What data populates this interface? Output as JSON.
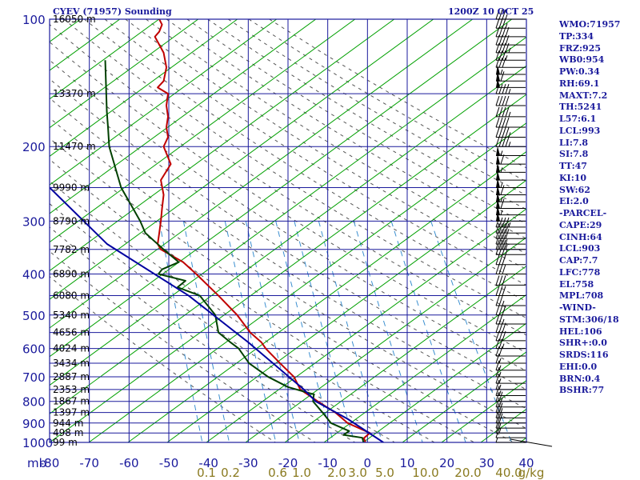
{
  "header": {
    "station": "CYEV (71957) Sounding",
    "datetime": "1200Z 10 OCT 25"
  },
  "colors": {
    "background": "#ffffff",
    "grid": "#1a1a9c",
    "isotherm_diagonal": "#00a000",
    "temperature": "#c00000",
    "dewpoint": "#004000",
    "parcel": "#0000a0",
    "dry_adiabat": "#555555",
    "mixing_ratio": "#3b8fd0",
    "text": "#1a1a9c",
    "mixing_ratio_labels": "#8a7a20"
  },
  "stats": [
    "WMO:71957",
    "TP:334",
    "FRZ:925",
    "WB0:954",
    "PW:0.34",
    "RH:69.1",
    "MAXT:7.2",
    "TH:5241",
    "L57:6.1",
    "LCL:993",
    "LI:7.8",
    "SI:7.8",
    "TT:47",
    "KI:10",
    "SW:62",
    "EI:2.0",
    "-PARCEL-",
    "CAPE:29",
    "CINH:64",
    "LCL:903",
    "CAP:7.7",
    "LFC:778",
    "EL:758",
    "MPL:708",
    "-WIND-",
    "STM:306/18",
    "HEL:106",
    "SHR+:0.0",
    "SRDS:116",
    "EHI:0.0",
    "BRN:0.4",
    "BSHR:77"
  ],
  "chart_data": {
    "type": "line",
    "title": "",
    "pressure_unit_label": "mb",
    "x_unit": "°C",
    "xlim": [
      -80,
      40
    ],
    "ylim": [
      1000,
      100
    ],
    "y_scale": "log",
    "grid": true,
    "x_ticks": [
      "-80",
      "-70",
      "-60",
      "-50",
      "-40",
      "-30",
      "-20",
      "-10",
      "0",
      "10",
      "20",
      "30",
      "40"
    ],
    "y_ticks": [
      "100",
      "200",
      "300",
      "400",
      "500",
      "600",
      "700",
      "800",
      "900",
      "1000"
    ],
    "height_labels": [
      {
        "p": 100,
        "label": "16050 m"
      },
      {
        "p": 150,
        "label": "13370 m"
      },
      {
        "p": 200,
        "label": "11470 m"
      },
      {
        "p": 250,
        "label": "9990 m"
      },
      {
        "p": 300,
        "label": "8790 m"
      },
      {
        "p": 350,
        "label": "7782 m"
      },
      {
        "p": 400,
        "label": "6890 m"
      },
      {
        "p": 450,
        "label": "6080 m"
      },
      {
        "p": 500,
        "label": "5340 m"
      },
      {
        "p": 550,
        "label": "4656 m"
      },
      {
        "p": 600,
        "label": "4024 m"
      },
      {
        "p": 650,
        "label": "3434 m"
      },
      {
        "p": 700,
        "label": "2887 m"
      },
      {
        "p": 750,
        "label": "2353 m"
      },
      {
        "p": 800,
        "label": "1867 m"
      },
      {
        "p": 850,
        "label": "1397 m"
      },
      {
        "p": 900,
        "label": "944 m"
      },
      {
        "p": 950,
        "label": "498 m"
      },
      {
        "p": 1000,
        "label": "99 m"
      }
    ],
    "mixing_ratio_labels": [
      "0.1",
      "0.2",
      "0.6",
      "1.0",
      "2.0",
      "3.0",
      "5.0",
      "10.0",
      "20.0",
      "40.0",
      "g/kg"
    ],
    "series": [
      {
        "key": "temperature",
        "points": [
          [
            -52.4,
            100
          ],
          [
            -51.7,
            103
          ],
          [
            -52.4,
            107
          ],
          [
            -53.5,
            110
          ],
          [
            -51.3,
            120
          ],
          [
            -50.6,
            130
          ],
          [
            -51.3,
            140
          ],
          [
            -52.8,
            145
          ],
          [
            -50.2,
            150
          ],
          [
            -50.6,
            160
          ],
          [
            -50.2,
            170
          ],
          [
            -50.6,
            180
          ],
          [
            -50.2,
            190
          ],
          [
            -51.3,
            200
          ],
          [
            -49.5,
            220
          ],
          [
            -52.0,
            240
          ],
          [
            -51.3,
            260
          ],
          [
            -51.7,
            280
          ],
          [
            -52.0,
            300
          ],
          [
            -52.4,
            320
          ],
          [
            -52.8,
            340
          ],
          [
            -52.0,
            350
          ],
          [
            -46.4,
            375
          ],
          [
            -43.1,
            400
          ],
          [
            -37.5,
            450
          ],
          [
            -32.8,
            500
          ],
          [
            -29.5,
            550
          ],
          [
            -26.7,
            580
          ],
          [
            -25.6,
            600
          ],
          [
            -22.0,
            650
          ],
          [
            -18.5,
            700
          ],
          [
            -16.9,
            750
          ],
          [
            -12.5,
            800
          ],
          [
            -8.1,
            850
          ],
          [
            -5.0,
            900
          ],
          [
            0.6,
            950
          ],
          [
            -0.9,
            977
          ],
          [
            -0.5,
            1000
          ]
        ]
      },
      {
        "key": "dewpoint",
        "points": [
          [
            -66,
            125
          ],
          [
            -65.6,
            165
          ],
          [
            -65.3,
            180
          ],
          [
            -65,
            200
          ],
          [
            -62,
            250
          ],
          [
            -59,
            280
          ],
          [
            -57.2,
            300
          ],
          [
            -55.9,
            320
          ],
          [
            -51.3,
            350
          ],
          [
            -47.5,
            375
          ],
          [
            -51.7,
            390
          ],
          [
            -52.6,
            400
          ],
          [
            -45.8,
            415
          ],
          [
            -47.8,
            430
          ],
          [
            -42.2,
            450
          ],
          [
            -38.3,
            500
          ],
          [
            -37.5,
            550
          ],
          [
            -34.5,
            580
          ],
          [
            -32.4,
            600
          ],
          [
            -29.8,
            650
          ],
          [
            -25.0,
            700
          ],
          [
            -20.0,
            740
          ],
          [
            -13.5,
            770
          ],
          [
            -13.7,
            800
          ],
          [
            -11.3,
            850
          ],
          [
            -9.2,
            900
          ],
          [
            -4.6,
            940
          ],
          [
            -6.0,
            960
          ],
          [
            -1.3,
            975
          ],
          [
            -1.0,
            1000
          ]
        ]
      },
      {
        "key": "parcel",
        "points": [
          [
            -80,
            250
          ],
          [
            -65.5,
            340
          ],
          [
            -45,
            450
          ],
          [
            -30,
            580
          ],
          [
            -16,
            750
          ],
          [
            -13,
            800
          ],
          [
            -5,
            880
          ],
          [
            4,
            1000
          ]
        ]
      }
    ],
    "wind_barbs": [
      {
        "p": 100,
        "speed_kt": 35
      },
      {
        "p": 105,
        "speed_kt": 35
      },
      {
        "p": 110,
        "speed_kt": 40
      },
      {
        "p": 115,
        "speed_kt": 40
      },
      {
        "p": 120,
        "speed_kt": 45
      },
      {
        "p": 125,
        "speed_kt": 35
      },
      {
        "p": 130,
        "speed_kt": 30
      },
      {
        "p": 135,
        "speed_kt": 55
      },
      {
        "p": 140,
        "speed_kt": 60
      },
      {
        "p": 145,
        "speed_kt": 50
      },
      {
        "p": 150,
        "speed_kt": 45
      },
      {
        "p": 160,
        "speed_kt": 40
      },
      {
        "p": 170,
        "speed_kt": 45
      },
      {
        "p": 180,
        "speed_kt": 40
      },
      {
        "p": 190,
        "speed_kt": 45
      },
      {
        "p": 200,
        "speed_kt": 45
      },
      {
        "p": 210,
        "speed_kt": 55
      },
      {
        "p": 220,
        "speed_kt": 60
      },
      {
        "p": 230,
        "speed_kt": 55
      },
      {
        "p": 240,
        "speed_kt": 50
      },
      {
        "p": 250,
        "speed_kt": 55
      },
      {
        "p": 260,
        "speed_kt": 60
      },
      {
        "p": 270,
        "speed_kt": 55
      },
      {
        "p": 280,
        "speed_kt": 60
      },
      {
        "p": 290,
        "speed_kt": 55
      },
      {
        "p": 300,
        "speed_kt": 50
      },
      {
        "p": 310,
        "speed_kt": 45
      },
      {
        "p": 320,
        "speed_kt": 40
      },
      {
        "p": 330,
        "speed_kt": 40
      },
      {
        "p": 340,
        "speed_kt": 35
      },
      {
        "p": 350,
        "speed_kt": 35
      },
      {
        "p": 360,
        "speed_kt": 35
      },
      {
        "p": 380,
        "speed_kt": 30
      },
      {
        "p": 400,
        "speed_kt": 30
      },
      {
        "p": 425,
        "speed_kt": 30
      },
      {
        "p": 450,
        "speed_kt": 30
      },
      {
        "p": 475,
        "speed_kt": 25
      },
      {
        "p": 500,
        "speed_kt": 30
      },
      {
        "p": 525,
        "speed_kt": 25
      },
      {
        "p": 550,
        "speed_kt": 30
      },
      {
        "p": 575,
        "speed_kt": 30
      },
      {
        "p": 600,
        "speed_kt": 25
      },
      {
        "p": 625,
        "speed_kt": 20
      },
      {
        "p": 650,
        "speed_kt": 15
      },
      {
        "p": 675,
        "speed_kt": 15
      },
      {
        "p": 700,
        "speed_kt": 15
      },
      {
        "p": 725,
        "speed_kt": 15
      },
      {
        "p": 750,
        "speed_kt": 15
      },
      {
        "p": 775,
        "speed_kt": 15
      },
      {
        "p": 800,
        "speed_kt": 20
      },
      {
        "p": 825,
        "speed_kt": 20
      },
      {
        "p": 850,
        "speed_kt": 20
      },
      {
        "p": 875,
        "speed_kt": 20
      },
      {
        "p": 900,
        "speed_kt": 20
      },
      {
        "p": 925,
        "speed_kt": 15
      },
      {
        "p": 950,
        "speed_kt": 15
      },
      {
        "p": 975,
        "speed_kt": 10
      },
      {
        "p": 1000,
        "speed_kt": 5
      }
    ]
  }
}
